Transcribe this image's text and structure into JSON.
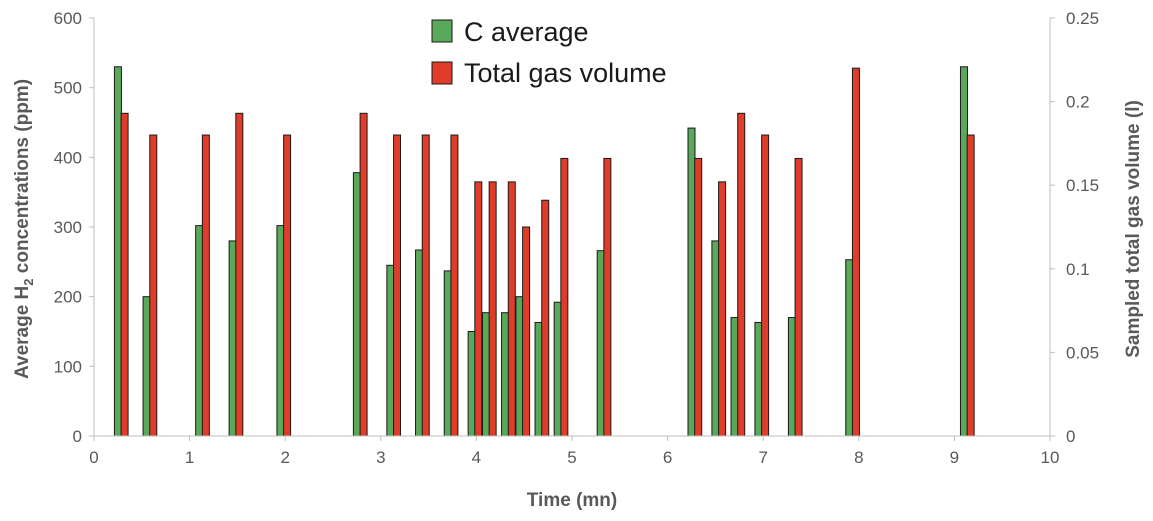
{
  "chart_data": {
    "type": "bar",
    "xlabel": "Time (mn)",
    "ylabel_left": {
      "main": "Average H",
      "sub": "2",
      "tail": " concentrations (ppm)"
    },
    "ylabel_right": "Sampled total gas volume (l)",
    "xlim": [
      0,
      10
    ],
    "ylim_left": [
      0,
      600
    ],
    "ylim_right": [
      0,
      0.25
    ],
    "x_ticks": [
      "0",
      "1",
      "2",
      "3",
      "4",
      "5",
      "6",
      "7",
      "8",
      "9",
      "10"
    ],
    "y_left_ticks": [
      "0",
      "100",
      "200",
      "300",
      "400",
      "500",
      "600"
    ],
    "y_right_ticks": [
      "0",
      "0.05",
      "0.1",
      "0.15",
      "0.2",
      "0.25"
    ],
    "grid": false,
    "legend_position": "top-center",
    "series": [
      {
        "name": "C average",
        "axis": "left",
        "color": "#5aa85a",
        "points": [
          {
            "x": 0.25,
            "y": 530
          },
          {
            "x": 0.55,
            "y": 200
          },
          {
            "x": 1.1,
            "y": 302
          },
          {
            "x": 1.45,
            "y": 280
          },
          {
            "x": 1.95,
            "y": 302
          },
          {
            "x": 2.75,
            "y": 378
          },
          {
            "x": 3.1,
            "y": 245
          },
          {
            "x": 3.4,
            "y": 267
          },
          {
            "x": 3.7,
            "y": 237
          },
          {
            "x": 3.95,
            "y": 150
          },
          {
            "x": 4.1,
            "y": 177
          },
          {
            "x": 4.3,
            "y": 177
          },
          {
            "x": 4.45,
            "y": 200
          },
          {
            "x": 4.65,
            "y": 163
          },
          {
            "x": 4.85,
            "y": 192
          },
          {
            "x": 5.3,
            "y": 266
          },
          {
            "x": 6.25,
            "y": 442
          },
          {
            "x": 6.5,
            "y": 280
          },
          {
            "x": 6.7,
            "y": 170
          },
          {
            "x": 6.95,
            "y": 163
          },
          {
            "x": 7.3,
            "y": 170
          },
          {
            "x": 7.9,
            "y": 253
          },
          {
            "x": 9.1,
            "y": 530
          }
        ]
      },
      {
        "name": "Total gas volume",
        "axis": "right",
        "color": "#e03c2a",
        "points": [
          {
            "x": 0.32,
            "y": 0.193
          },
          {
            "x": 0.62,
            "y": 0.18
          },
          {
            "x": 1.17,
            "y": 0.18
          },
          {
            "x": 1.52,
            "y": 0.193
          },
          {
            "x": 2.02,
            "y": 0.18
          },
          {
            "x": 2.82,
            "y": 0.193
          },
          {
            "x": 3.17,
            "y": 0.18
          },
          {
            "x": 3.47,
            "y": 0.18
          },
          {
            "x": 3.77,
            "y": 0.18
          },
          {
            "x": 4.02,
            "y": 0.152
          },
          {
            "x": 4.17,
            "y": 0.152
          },
          {
            "x": 4.37,
            "y": 0.152
          },
          {
            "x": 4.52,
            "y": 0.125
          },
          {
            "x": 4.72,
            "y": 0.141
          },
          {
            "x": 4.92,
            "y": 0.166
          },
          {
            "x": 5.37,
            "y": 0.166
          },
          {
            "x": 6.32,
            "y": 0.166
          },
          {
            "x": 6.57,
            "y": 0.152
          },
          {
            "x": 6.77,
            "y": 0.193
          },
          {
            "x": 7.02,
            "y": 0.18
          },
          {
            "x": 7.37,
            "y": 0.166
          },
          {
            "x": 7.97,
            "y": 0.22
          },
          {
            "x": 9.17,
            "y": 0.18
          }
        ]
      }
    ]
  }
}
